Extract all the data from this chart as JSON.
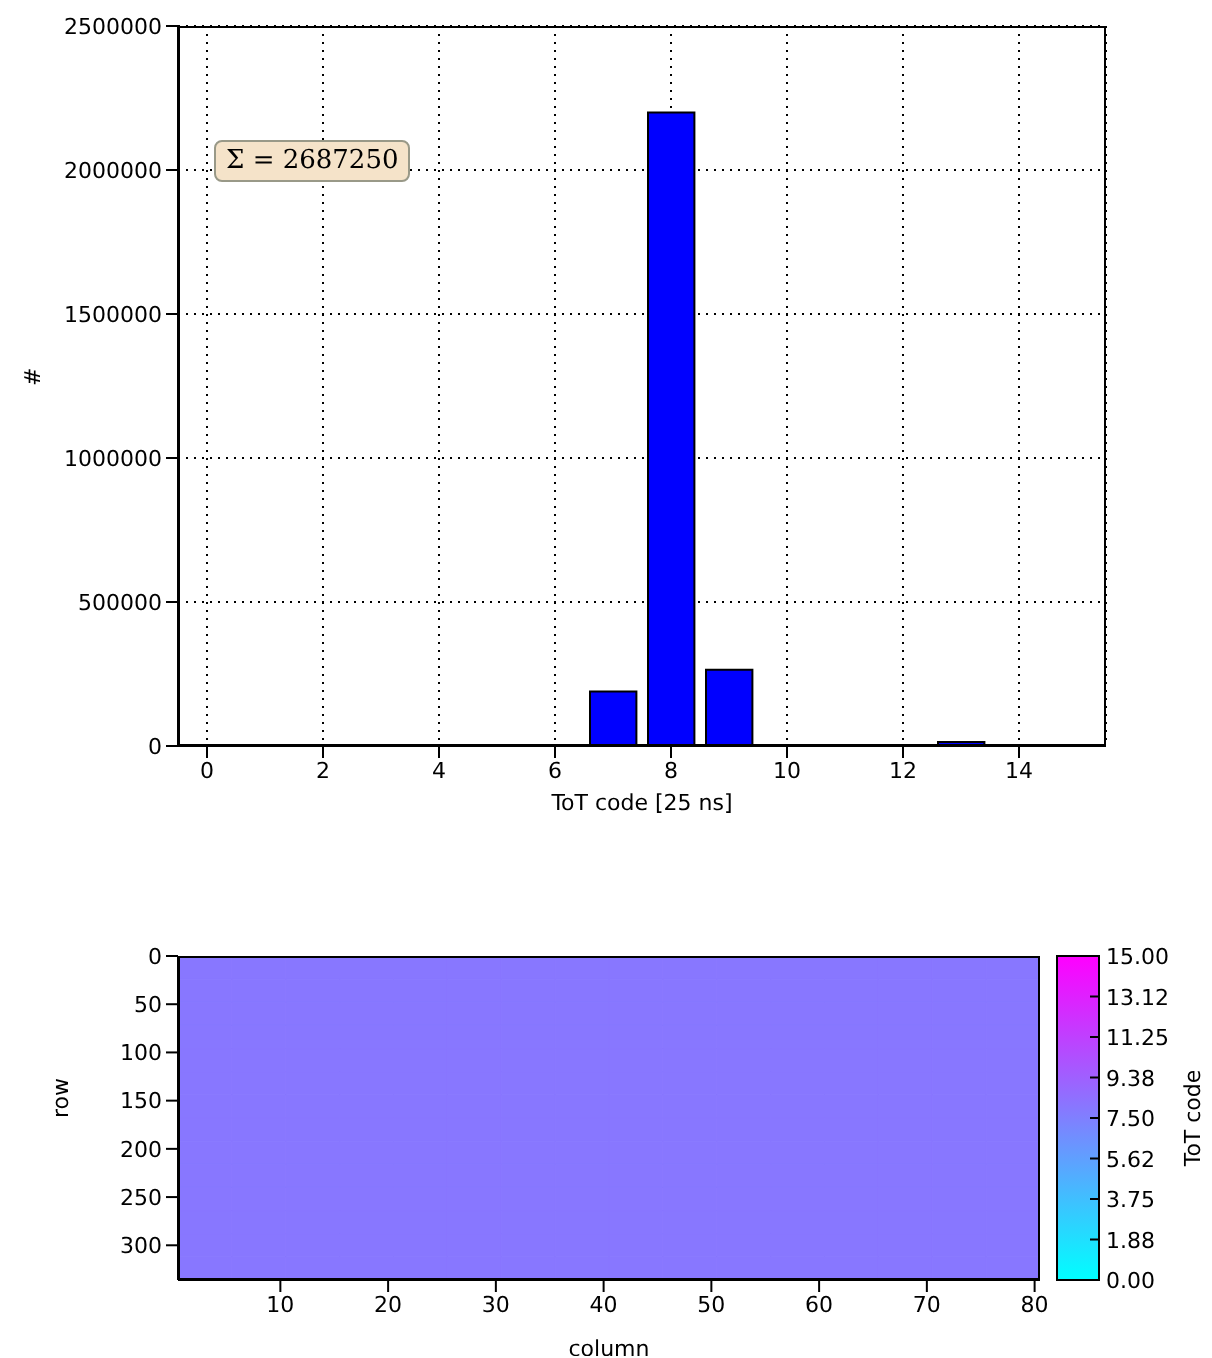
{
  "chart_data": [
    {
      "type": "bar",
      "x": [
        0,
        1,
        2,
        3,
        4,
        5,
        6,
        7,
        8,
        9,
        10,
        11,
        12,
        13,
        14,
        15
      ],
      "values": [
        0,
        0,
        0,
        0,
        0,
        0,
        0,
        189000,
        2200000,
        265000,
        0,
        0,
        0,
        14000,
        0,
        0
      ],
      "color": "#0000ff",
      "xlim": [
        -0.5,
        15.5
      ],
      "xticks": [
        0,
        2,
        4,
        6,
        8,
        10,
        12,
        14
      ],
      "ylim": [
        0,
        2500000
      ],
      "yticks": [
        0,
        500000,
        1000000,
        1500000,
        2000000,
        2500000
      ],
      "xlabel": "ToT code [25 ns]",
      "ylabel": "#",
      "grid": true,
      "annotations": [
        "Σ = 2687250"
      ]
    },
    {
      "type": "heatmap",
      "xlabel": "column",
      "ylabel": "row",
      "clabel": "ToT code",
      "xlim": [
        0.5,
        80.5
      ],
      "xticks": [
        10,
        20,
        30,
        40,
        50,
        60,
        70,
        80
      ],
      "ylim": [
        336,
        0
      ],
      "yticks": [
        0,
        50,
        100,
        150,
        200,
        250,
        300
      ],
      "clim": [
        0,
        15
      ],
      "cticks": [
        {
          "value": 0,
          "label": "0.00"
        },
        {
          "value": 1.875,
          "label": "1.88"
        },
        {
          "value": 3.75,
          "label": "3.75"
        },
        {
          "value": 5.625,
          "label": "5.62"
        },
        {
          "value": 7.5,
          "label": "7.50"
        },
        {
          "value": 9.375,
          "label": "9.38"
        },
        {
          "value": 11.25,
          "label": "11.25"
        },
        {
          "value": 13.125,
          "label": "13.12"
        },
        {
          "value": 15,
          "label": "15.00"
        }
      ],
      "cells": [
        [
          8,
          8,
          8,
          8,
          8,
          8,
          8,
          8,
          8,
          8,
          8,
          8,
          8,
          8,
          8,
          8
        ],
        [
          8,
          8,
          8,
          8,
          8,
          8,
          8,
          8,
          8,
          8,
          8,
          8,
          8,
          8,
          8,
          8
        ],
        [
          8,
          8,
          8,
          8,
          8,
          8,
          8,
          8,
          8,
          8,
          8,
          8,
          8,
          8,
          8,
          8
        ],
        [
          8,
          8,
          8,
          8,
          8,
          8,
          8,
          8,
          8,
          8,
          8,
          8,
          8,
          8,
          8,
          8
        ],
        [
          8,
          8,
          8,
          8,
          8,
          8,
          8,
          8,
          8,
          8,
          8,
          8,
          8,
          8,
          8,
          8
        ],
        [
          8,
          8,
          8,
          8,
          8,
          8,
          8,
          8,
          8,
          8,
          8,
          8,
          8,
          8,
          8,
          8
        ],
        [
          8,
          8,
          8,
          8,
          8,
          8,
          8,
          8,
          8,
          8,
          8,
          8,
          8,
          8,
          8,
          8
        ],
        [
          8,
          8,
          8,
          8,
          8,
          8,
          8,
          8,
          8,
          8,
          8,
          8,
          8,
          8,
          8,
          8
        ],
        [
          8,
          8,
          8,
          8,
          8,
          8,
          8,
          8,
          8,
          8,
          8,
          8,
          8,
          8,
          8,
          8
        ],
        [
          8,
          8,
          8,
          8,
          8,
          8,
          8,
          8,
          8,
          8,
          8,
          8,
          8,
          8,
          8,
          8
        ],
        [
          8,
          8,
          8,
          8,
          8,
          8,
          8,
          8,
          8,
          8,
          8,
          8,
          8,
          8,
          8,
          8
        ],
        [
          8,
          8,
          8,
          8,
          8,
          8,
          8,
          8,
          8,
          8,
          8,
          8,
          8,
          8,
          8,
          8
        ],
        [
          8,
          8,
          8,
          8,
          8,
          8,
          8,
          8,
          8,
          8,
          8,
          8,
          8,
          8,
          8,
          8
        ],
        [
          8,
          8,
          8,
          8,
          8,
          8,
          8,
          8,
          8,
          8,
          8,
          8,
          8,
          8,
          8,
          8
        ]
      ]
    }
  ]
}
